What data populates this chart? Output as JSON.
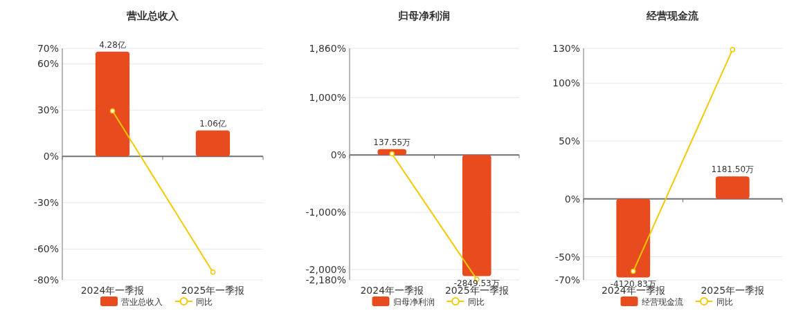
{
  "chart_data": [
    {
      "type": "bar",
      "title": "营业总收入",
      "categories": [
        "2024年一季报",
        "2025年一季报"
      ],
      "ylim": [
        -80,
        70
      ],
      "yticks": [
        {
          "value": 70,
          "label": "70%"
        },
        {
          "value": 60,
          "label": "60%"
        },
        {
          "value": 30,
          "label": "30%"
        },
        {
          "value": 0,
          "label": "0%"
        },
        {
          "value": -30,
          "label": "-30%"
        },
        {
          "value": -60,
          "label": "-60%"
        },
        {
          "value": -80,
          "label": "-80%"
        }
      ],
      "grid": "y",
      "legend": "bottom",
      "series": [
        {
          "name": "营业总收入",
          "axis": "y2",
          "color": "#e84c1e",
          "values": [
            4.28,
            1.06
          ],
          "value_labels": [
            "4.28亿",
            "1.06亿"
          ]
        },
        {
          "name": "同比",
          "type": "line",
          "color": "#f5c800",
          "marker": "circle",
          "values": [
            29.5,
            -75
          ]
        }
      ]
    },
    {
      "type": "bar",
      "title": "归母净利润",
      "categories": [
        "2024年一季报",
        "2025年一季报"
      ],
      "ylim": [
        -2180,
        1860
      ],
      "yticks": [
        {
          "value": 1860,
          "label": "1,860%"
        },
        {
          "value": 1000,
          "label": "1,000%"
        },
        {
          "value": 0,
          "label": "0%"
        },
        {
          "value": -1000,
          "label": "-1,000%"
        },
        {
          "value": -2000,
          "label": "-2,000%"
        },
        {
          "value": -2180,
          "label": "-2,180%"
        }
      ],
      "grid": "y",
      "legend": "bottom",
      "series": [
        {
          "name": "归母净利润",
          "axis": "y2",
          "color": "#e84c1e",
          "values": [
            137.55,
            -2849.53
          ],
          "value_labels": [
            "137.55万",
            "-2849.53万"
          ]
        },
        {
          "name": "同比",
          "type": "line",
          "color": "#f5c800",
          "marker": "circle",
          "values": [
            20,
            -2170
          ]
        }
      ]
    },
    {
      "type": "bar",
      "title": "经营现金流",
      "categories": [
        "2024年一季报",
        "2025年一季报"
      ],
      "ylim": [
        -70,
        130
      ],
      "yticks": [
        {
          "value": 130,
          "label": "130%"
        },
        {
          "value": 100,
          "label": "100%"
        },
        {
          "value": 50,
          "label": "50%"
        },
        {
          "value": 0,
          "label": "0%"
        },
        {
          "value": -50,
          "label": "-50%"
        },
        {
          "value": -70,
          "label": "-70%"
        }
      ],
      "grid": "y",
      "legend": "bottom",
      "series": [
        {
          "name": "经营现金流",
          "axis": "y2",
          "color": "#e84c1e",
          "values": [
            -4120.83,
            1181.5
          ],
          "value_labels": [
            "-4120.83万",
            "1181.50万"
          ]
        },
        {
          "name": "同比",
          "type": "line",
          "color": "#f5c800",
          "marker": "circle",
          "values": [
            -62.6,
            129
          ]
        }
      ]
    }
  ]
}
